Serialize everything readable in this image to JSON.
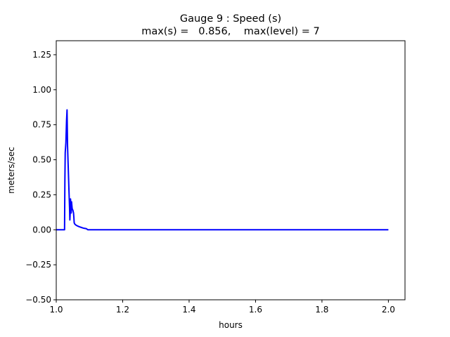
{
  "chart_data": {
    "type": "line",
    "title": "Gauge 9 : Speed (s)",
    "subtitle": "max(s) =   0.856,    max(level) = 7",
    "xlabel": "hours",
    "ylabel": "meters/sec",
    "xlim": [
      1.0,
      2.05
    ],
    "ylim": [
      -0.5,
      1.35
    ],
    "xticks": [
      "1.0",
      "1.2",
      "1.4",
      "1.6",
      "1.8",
      "2.0"
    ],
    "yticks": [
      "−0.50",
      "−0.25",
      "0.00",
      "0.25",
      "0.50",
      "0.75",
      "1.00",
      "1.25"
    ],
    "grid": false,
    "line_color": "#0000ff",
    "series": [
      {
        "x": [
          1.0,
          1.025,
          1.026,
          1.027,
          1.029,
          1.031,
          1.0325,
          1.034,
          1.036,
          1.038,
          1.04,
          1.041,
          1.042,
          1.043,
          1.044,
          1.045,
          1.046,
          1.048,
          1.05,
          1.052,
          1.053,
          1.054,
          1.056,
          1.06,
          1.065,
          1.07,
          1.075,
          1.08,
          1.085,
          1.09,
          1.093,
          1.095,
          1.1,
          1.2,
          1.4,
          1.6,
          1.8,
          2.0
        ],
        "y": [
          0.0,
          0.0,
          0.35,
          0.55,
          0.62,
          0.78,
          0.856,
          0.6,
          0.45,
          0.3,
          0.16,
          0.07,
          0.12,
          0.22,
          0.16,
          0.12,
          0.2,
          0.15,
          0.14,
          0.12,
          0.09,
          0.05,
          0.04,
          0.032,
          0.026,
          0.021,
          0.017,
          0.013,
          0.01,
          0.008,
          0.004,
          0.0,
          0.0,
          0.0,
          0.0,
          0.0,
          0.0,
          0.0
        ]
      }
    ]
  }
}
